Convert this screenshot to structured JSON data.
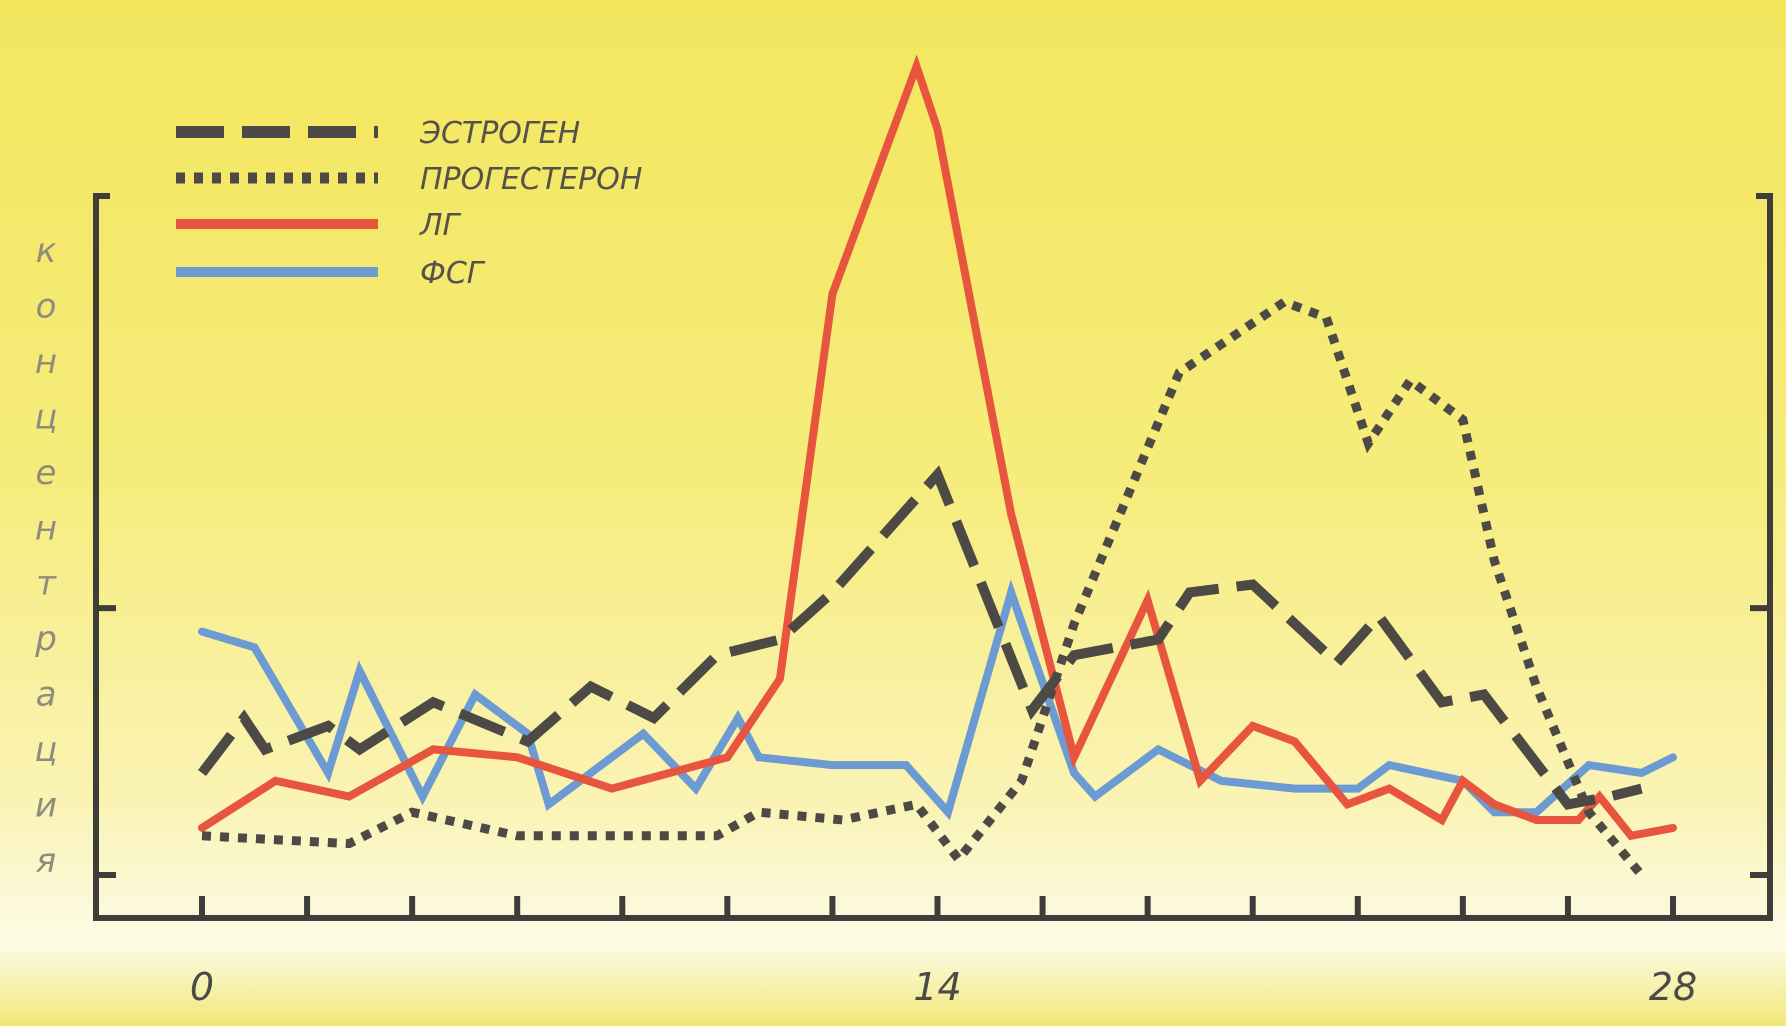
{
  "chart_data": {
    "type": "line",
    "title": "",
    "xlabel": "",
    "ylabel": "концентрация",
    "xlim": [
      0,
      28
    ],
    "ylim": [
      0,
      10
    ],
    "x_ticks": [
      0,
      14,
      28
    ],
    "grid": false,
    "legend_placement": "top-left",
    "series": [
      {
        "name": "ЭСТРОГЕН",
        "style": "dashed",
        "color": "#4d4a45",
        "x": [
          0,
          0.8,
          1.2,
          2.4,
          3.0,
          4.4,
          6.2,
          7.4,
          8.6,
          9.8,
          11.0,
          12.0,
          14.0,
          15.8,
          16.6,
          18.2,
          18.8,
          20.0,
          21.6,
          22.4,
          23.6,
          24.4,
          26.0,
          26.8,
          27.4
        ],
        "y": [
          1.3,
          2.0,
          1.6,
          1.9,
          1.6,
          2.2,
          1.7,
          2.4,
          2.0,
          2.8,
          3.0,
          3.6,
          5.1,
          2.1,
          2.8,
          3.0,
          3.6,
          3.7,
          2.7,
          3.3,
          2.2,
          2.3,
          0.9,
          1.0,
          1.1
        ]
      },
      {
        "name": "ПРОГЕСТЕРОН",
        "style": "dotted",
        "color": "#4d4a45",
        "x": [
          0,
          2.8,
          4.0,
          6.0,
          9.8,
          10.6,
          12.2,
          13.6,
          14.4,
          15.6,
          16.6,
          18.6,
          20.6,
          21.4,
          22.2,
          23.0,
          24.0,
          24.6,
          25.4,
          26.4,
          27.4
        ],
        "y": [
          0.5,
          0.4,
          0.8,
          0.5,
          0.5,
          0.8,
          0.7,
          0.9,
          0.2,
          1.2,
          3.2,
          6.4,
          7.3,
          7.1,
          5.5,
          6.3,
          5.8,
          4.0,
          2.4,
          0.8,
          0.0
        ]
      },
      {
        "name": "ЛГ",
        "style": "solid",
        "color": "#e8553f",
        "x": [
          0,
          1.4,
          2.8,
          4.4,
          6.0,
          7.8,
          10.0,
          11.0,
          12.0,
          13.6,
          14.0,
          15.4,
          16.6,
          18.0,
          19.0,
          20.0,
          20.8,
          21.8,
          22.6,
          23.6,
          24.0,
          24.6,
          25.4,
          26.2,
          26.6,
          27.2,
          28.0
        ],
        "y": [
          0.6,
          1.2,
          1.0,
          1.6,
          1.5,
          1.1,
          1.5,
          2.5,
          7.4,
          10.3,
          9.5,
          4.6,
          1.5,
          3.5,
          1.2,
          1.9,
          1.7,
          0.9,
          1.1,
          0.7,
          1.2,
          0.9,
          0.7,
          0.7,
          1.0,
          0.5,
          0.6
        ]
      },
      {
        "name": "ФСГ",
        "style": "solid",
        "color": "#6b9bd2",
        "x": [
          0,
          1.0,
          2.4,
          3.0,
          4.2,
          5.2,
          6.2,
          6.6,
          8.4,
          9.4,
          10.2,
          10.6,
          12.0,
          13.4,
          14.2,
          15.4,
          16.6,
          17.0,
          18.2,
          19.4,
          20.8,
          22.0,
          22.6,
          24.0,
          24.6,
          25.4,
          26.4,
          27.4,
          28.0
        ],
        "y": [
          3.1,
          2.9,
          1.3,
          2.6,
          1.0,
          2.3,
          1.8,
          0.9,
          1.8,
          1.1,
          2.0,
          1.5,
          1.4,
          1.4,
          0.8,
          3.6,
          1.3,
          1.0,
          1.6,
          1.2,
          1.1,
          1.1,
          1.4,
          1.2,
          0.8,
          0.8,
          1.4,
          1.3,
          1.5
        ]
      }
    ]
  }
}
